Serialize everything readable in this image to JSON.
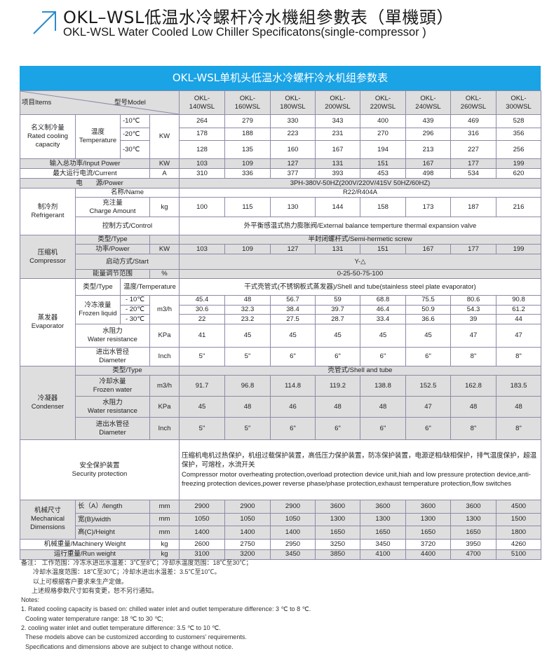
{
  "title": {
    "cn": "OKL–WSL低温水冷螺杆冷水機組參數表（單機頭）",
    "en": "OKL-WSL Water Cooled Low Chiller Specificatons(single-compressor )",
    "icon": "arrow-up-right-icon",
    "accent": "#2a8ccc"
  },
  "table": {
    "banner": "OKL-WSL单机头低温水冷螺杆冷水机组参数表",
    "banner_color": "#1aa3e5",
    "header": {
      "items": "项目Items",
      "model": "型号Model"
    },
    "models": [
      [
        "OKL-",
        "140WSL"
      ],
      [
        "OKL-",
        "160WSL"
      ],
      [
        "OKL-",
        "180WSL"
      ],
      [
        "OKL-",
        "200WSL"
      ],
      [
        "OKL-",
        "220WSL"
      ],
      [
        "OKL-",
        "240WSL"
      ],
      [
        "OKL-",
        "260WSL"
      ],
      [
        "OKL-",
        "300WSL"
      ]
    ],
    "cooling": {
      "label": [
        "名义制冷量",
        "Rated cooling",
        "capacity"
      ],
      "temp": [
        "温度",
        "Temperature"
      ],
      "unit": "KW",
      "rows": [
        {
          "temp": "-10℃",
          "values": [
            "264",
            "279",
            "330",
            "343",
            "400",
            "439",
            "469",
            "528"
          ]
        },
        {
          "temp": "-20℃",
          "values": [
            "178",
            "188",
            "223",
            "231",
            "270",
            "296",
            "316",
            "356"
          ]
        },
        {
          "temp": "-30℃",
          "values": [
            "128",
            "135",
            "160",
            "167",
            "194",
            "213",
            "227",
            "256"
          ]
        }
      ]
    },
    "input_power": {
      "label": "输入总功率/Input Power",
      "unit": "KW",
      "values": [
        "103",
        "109",
        "127",
        "131",
        "151",
        "167",
        "177",
        "199"
      ]
    },
    "current": {
      "label": "最大运行电流/Current",
      "unit": "A",
      "values": [
        "310",
        "336",
        "377",
        "393",
        "453",
        "498",
        "534",
        "620"
      ]
    },
    "power_supply": {
      "label": "电　　源/Power",
      "value": "3PH-380V-50HZ(200V/220V/415V  50HZ/60HZ)"
    },
    "refrigerant": {
      "label": [
        "制冷剂",
        "Refrigerant"
      ],
      "name_label": "名称/Name",
      "name_value": "R22/R404A",
      "charge_label": [
        "充注量",
        "Charge Amount"
      ],
      "charge_unit": "kg",
      "charge_values": [
        "100",
        "115",
        "130",
        "144",
        "158",
        "173",
        "187",
        "216"
      ],
      "control_label": "控制方式/Control",
      "control_value": "外平衡感温式热力膨胀阀/External balance temperture thermal expansion valve"
    },
    "compressor": {
      "label": [
        "压缩机",
        "Compressor"
      ],
      "type_label": "类型/Type",
      "type_value": "半封闭螺杆式/Semi-hermetic screw",
      "power_label": "功率/Power",
      "power_unit": "KW",
      "power_values": [
        "103",
        "109",
        "127",
        "131",
        "151",
        "167",
        "177",
        "199"
      ],
      "start_label": "启动方式/Start",
      "start_value": "Y-△",
      "energy_label": "能量调节范围",
      "energy_unit": "%",
      "energy_value": "0-25-50-75-100"
    },
    "evaporator": {
      "label": [
        "蒸发器",
        "Evaporator"
      ],
      "type_label": "类型/Type",
      "temp_label": "温度/Temperature",
      "type_value": "干式壳管式(不锈钢板式蒸发器)/Shell and tube(stainless steel plate evaporator)",
      "frozen_label": [
        "冷冻液量",
        "Frozen liquid"
      ],
      "frozen_unit": "m3/h",
      "frozen_rows": [
        {
          "temp": "- 10℃",
          "values": [
            "45.4",
            "48",
            "56.7",
            "59",
            "68.8",
            "75.5",
            "80.6",
            "90.8"
          ]
        },
        {
          "temp": "- 20℃",
          "values": [
            "30.6",
            "32.3",
            "38.4",
            "39.7",
            "46.4",
            "50.9",
            "54.3",
            "61.2"
          ]
        },
        {
          "temp": "- 30℃",
          "values": [
            "22",
            "23.2",
            "27.5",
            "28.7",
            "33.4",
            "36.6",
            "39",
            "44"
          ]
        }
      ],
      "resistance_label": [
        "水阻力",
        "Water resistance"
      ],
      "resistance_unit": "KPa",
      "resistance_values": [
        "41",
        "45",
        "45",
        "45",
        "45",
        "45",
        "47",
        "47"
      ],
      "diameter_label": [
        "进出水管径",
        "Diameter"
      ],
      "diameter_unit": "Inch",
      "diameter_values": [
        "5\"",
        "5\"",
        "6\"",
        "6\"",
        "6\"",
        "6\"",
        "8\"",
        "8\""
      ]
    },
    "condenser": {
      "label": [
        "冷凝器",
        "Condenser"
      ],
      "type_label": "类型/Type",
      "type_value": "壳管式/Shell and tube",
      "water_label": [
        "冷却水量",
        "Frozen water"
      ],
      "water_unit": "m3/h",
      "water_values": [
        "91.7",
        "96.8",
        "114.8",
        "119.2",
        "138.8",
        "152.5",
        "162.8",
        "183.5"
      ],
      "resistance_label": [
        "水阻力",
        "Water resistance"
      ],
      "resistance_unit": "KPa",
      "resistance_values": [
        "45",
        "48",
        "46",
        "48",
        "48",
        "47",
        "48",
        "48"
      ],
      "diameter_label": [
        "进出水管径",
        "Diameter"
      ],
      "diameter_unit": "Inch",
      "diameter_values": [
        "5\"",
        "5\"",
        "6\"",
        "6\"",
        "6\"",
        "6\"",
        "8\"",
        "8\""
      ]
    },
    "security": {
      "label": [
        "安全保护装置",
        "Security protection"
      ],
      "value_cn": "压缩机电机过热保护，机组过载保护装置，高低压力保护装置，防冻保护装置，电源逆相/缺相保护，排气温度保护，超温保护，可熔栓，水流开关",
      "value_en": "Compressor motor overheating protection,overload protection device unit,hiah and low pressure protection device,anti-freezing protection devices,power reverse phase/phase protection,exhaust temperature protection,flow switches"
    },
    "dimensions": {
      "label": [
        "机械尺寸",
        "Mechanical",
        "Dimensions"
      ],
      "rows": [
        {
          "label": "长（A）/length",
          "unit": "mm",
          "values": [
            "2900",
            "2900",
            "2900",
            "3600",
            "3600",
            "3600",
            "3600",
            "4500"
          ]
        },
        {
          "label": "宽(B)/width",
          "unit": "mm",
          "values": [
            "1050",
            "1050",
            "1050",
            "1300",
            "1300",
            "1300",
            "1300",
            "1500"
          ]
        },
        {
          "label": "高(C)/Height",
          "unit": "mm",
          "values": [
            "1400",
            "1400",
            "1400",
            "1650",
            "1650",
            "1650",
            "1650",
            "1800"
          ]
        }
      ]
    },
    "machinery_weight": {
      "label": "机械重量/Machinery Weight",
      "unit": "kg",
      "values": [
        "2600",
        "2750",
        "2950",
        "3250",
        "3450",
        "3720",
        "3950",
        "4260"
      ]
    },
    "run_weight": {
      "label": "运行重量/Run weight",
      "unit": "kg",
      "values": [
        "3100",
        "3200",
        "3450",
        "3850",
        "4100",
        "4400",
        "4700",
        "5100"
      ]
    }
  },
  "notes": {
    "cn": [
      "备注：  工作范围：冷冻水进出水温差：3℃至8℃；冷却水温度范围：18℃至30℃；",
      "冷却水温度范围：18℃至30℃；冷却水进出水温差：3.5℃至10℃。",
      "以上可根据客户要求来生产定做。",
      "上述规格参数尺寸如有变更，恕不另行通知。"
    ],
    "heading": "Notes:",
    "en": [
      "1. Rated cooling capacity is based on: chilled water inlet and outlet temperature difference: 3 ℃ to 8 ℃.",
      "Cooling water temperature range: 18 ℃ to 30 ℃;",
      "2. cooling water inlet and outlet temperature difference: 3.5 ℃ to 10 ℃.",
      "These models above can be customized according to customers’  requirements.",
      "Specifications and dimensions above are subject to change without notice."
    ]
  }
}
